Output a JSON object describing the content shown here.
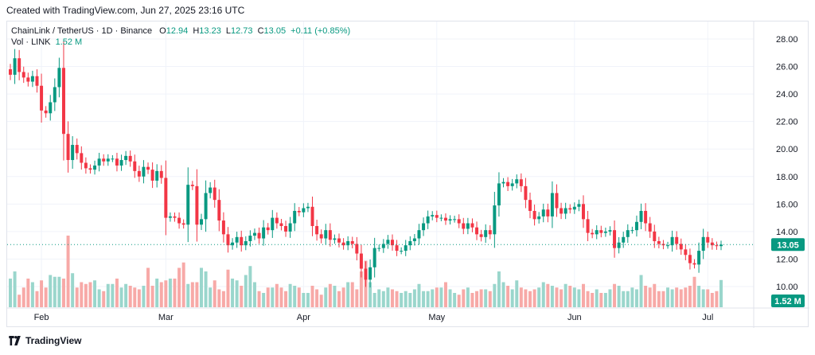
{
  "header": {
    "created_text": "Created with TradingView.com, Jun 27, 2025 23:16 UTC"
  },
  "legend": {
    "symbol": "ChainLink / TetherUS · 1D · Binance",
    "o_label": "O",
    "o_value": "12.94",
    "h_label": "H",
    "h_value": "13.23",
    "l_label": "L",
    "l_value": "12.73",
    "c_label": "C",
    "c_value": "13.05",
    "change": "+0.11 (+0.85%)",
    "vol_label": "Vol · LINK",
    "vol_value": "1.52 M"
  },
  "footer": {
    "brand": "TradingView"
  },
  "colors": {
    "up": "#089981",
    "down": "#f23645",
    "vol_up": "#9ad6cc",
    "vol_down": "#f7a9a7",
    "grid": "#f0f3fa"
  },
  "chart_data": {
    "type": "candlestick",
    "x_tick_labels": [
      "Feb",
      "Mar",
      "Apr",
      "May",
      "Jun",
      "Jul"
    ],
    "y_tick_labels": [
      "28.00",
      "26.00",
      "24.00",
      "22.00",
      "20.00",
      "18.00",
      "16.00",
      "14.00",
      "12.00",
      "10.00"
    ],
    "ylim": [
      9.0,
      28.6
    ],
    "last_price": 13.05,
    "last_price_label": "13.05",
    "last_volume_label": "1.52 M",
    "date_range": [
      "2025-01-25",
      "2025-06-27"
    ],
    "closes": [
      25.4,
      26.6,
      25.6,
      25.2,
      24.9,
      25.3,
      24.6,
      22.8,
      22.6,
      23.4,
      24.5,
      25.9,
      21.1,
      19.2,
      20.3,
      19.7,
      19.0,
      18.6,
      18.5,
      18.8,
      19.3,
      19.1,
      19.3,
      19.3,
      18.8,
      19.2,
      19.5,
      19.1,
      18.4,
      18.0,
      18.7,
      18.5,
      17.7,
      18.4,
      17.9,
      15.0,
      15.1,
      15.0,
      14.6,
      14.5,
      17.4,
      17.3,
      14.5,
      14.9,
      16.8,
      17.2,
      16.3,
      14.8,
      13.8,
      13.0,
      13.2,
      13.6,
      13.0,
      13.3,
      13.7,
      13.9,
      13.5,
      14.3,
      14.1,
      15.0,
      14.6,
      14.4,
      14.0,
      14.6,
      15.5,
      15.4,
      15.7,
      15.8,
      14.4,
      13.8,
      13.5,
      14.1,
      13.4,
      13.5,
      13.2,
      13.0,
      13.3,
      13.1,
      12.4,
      11.3,
      10.5,
      11.4,
      12.8,
      12.8,
      13.1,
      13.4,
      13.0,
      12.6,
      12.6,
      13.0,
      13.3,
      13.5,
      14.1,
      14.6,
      15.1,
      15.2,
      15.0,
      15.0,
      14.8,
      14.9,
      14.9,
      14.6,
      14.2,
      14.6,
      14.3,
      13.8,
      13.6,
      14.1,
      13.8,
      15.9,
      17.5,
      17.6,
      17.3,
      17.5,
      17.8,
      17.3,
      16.3,
      15.5,
      14.9,
      15.1,
      15.6,
      15.1,
      16.8,
      15.7,
      15.3,
      15.7,
      15.6,
      15.8,
      16.0,
      14.9,
      13.9,
      13.8,
      14.1,
      13.9,
      14.0,
      14.1,
      12.8,
      13.2,
      13.6,
      14.1,
      14.1,
      14.7,
      15.5,
      14.6,
      14.0,
      13.3,
      13.1,
      13.0,
      13.0,
      13.6,
      13.1,
      12.7,
      12.3,
      11.7,
      11.6,
      12.6,
      13.6,
      13.2,
      13.0,
      12.94,
      13.05
    ],
    "volume_label_note": "Volume histogram shown under price; last value printed on axis",
    "volume_scale_units": "M",
    "volumes": [
      1.6,
      2.0,
      0.7,
      1.1,
      1.6,
      1.4,
      0.9,
      1.5,
      1.1,
      1.8,
      1.7,
      1.7,
      1.6,
      4.0,
      1.9,
      1.1,
      1.4,
      1.3,
      1.4,
      1.5,
      1.0,
      0.9,
      1.3,
      1.3,
      1.6,
      1.1,
      1.3,
      1.2,
      1.1,
      1.0,
      1.2,
      2.2,
      1.2,
      1.6,
      1.4,
      1.5,
      1.6,
      1.6,
      2.2,
      2.5,
      1.3,
      1.4,
      1.4,
      2.2,
      2.0,
      1.1,
      1.5,
      1.0,
      0.9,
      2.1,
      1.6,
      1.5,
      1.2,
      1.8,
      2.3,
      1.4,
      0.9,
      0.8,
      1.1,
      1.1,
      1.3,
      1.1,
      0.9,
      1.3,
      1.2,
      1.1,
      0.8,
      0.8,
      1.2,
      1.0,
      0.7,
      1.1,
      1.3,
      1.2,
      0.9,
      1.1,
      1.4,
      1.4,
      1.0,
      2.0,
      2.6,
      1.4,
      0.8,
      1.0,
      0.9,
      1.1,
      1.0,
      0.9,
      0.8,
      0.9,
      0.8,
      1.0,
      1.3,
      0.9,
      0.9,
      1.0,
      1.1,
      1.1,
      1.4,
      1.0,
      0.8,
      0.7,
      1.0,
      1.1,
      0.8,
      0.9,
      1.0,
      1.0,
      0.9,
      1.3,
      2.0,
      1.4,
      1.2,
      1.0,
      1.5,
      1.1,
      1.0,
      0.9,
      1.0,
      1.1,
      1.4,
      1.3,
      1.2,
      1.1,
      1.0,
      1.3,
      1.2,
      1.1,
      1.0,
      1.3,
      0.9,
      0.8,
      1.0,
      0.8,
      0.8,
      1.0,
      1.3,
      1.2,
      0.9,
      0.9,
      1.1,
      1.0,
      1.8,
      1.2,
      1.1,
      1.3,
      0.9,
      0.9,
      1.1,
      1.0,
      1.1,
      1.0,
      1.1,
      1.2,
      1.7,
      1.2,
      1.0,
      1.0,
      0.8,
      0.9,
      1.52
    ]
  }
}
